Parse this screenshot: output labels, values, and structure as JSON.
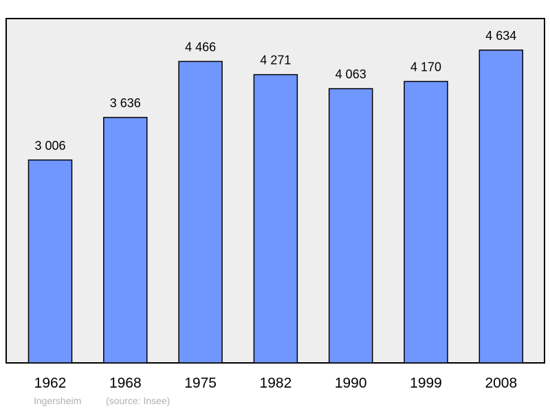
{
  "colors": {
    "plot_background": "#eeeeee",
    "bar_fill": "#7096ff",
    "bar_stroke": "#000000",
    "footer_text": "#b0b0b0"
  },
  "chart_data": {
    "type": "bar",
    "categories": [
      "1962",
      "1968",
      "1975",
      "1982",
      "1990",
      "1999",
      "2008"
    ],
    "values": [
      3006,
      3636,
      4466,
      4271,
      4063,
      4170,
      4634
    ],
    "value_labels": [
      "3 006",
      "3 636",
      "4 466",
      "4 271",
      "4 063",
      "4 170",
      "4 634"
    ],
    "ylim": [
      0,
      5000
    ],
    "grid": false,
    "legend": "none"
  },
  "footer": {
    "place": "Ingersheim",
    "source": "(source: Insee)"
  }
}
